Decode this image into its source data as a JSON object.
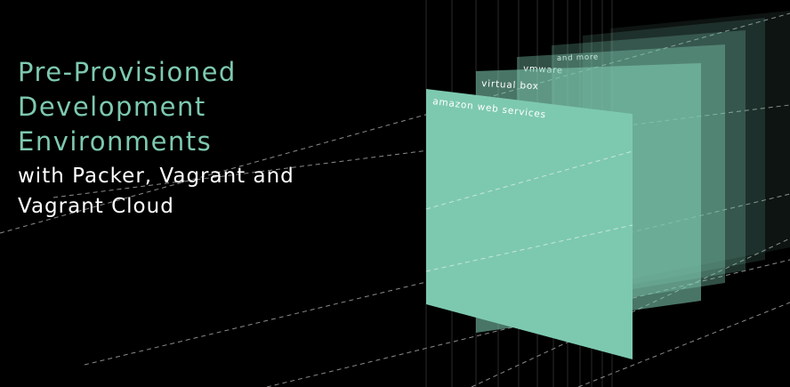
{
  "title_lines": [
    "Pre-Provisioned",
    "Development",
    "Environments"
  ],
  "subtitle_lines": [
    "with Packer, Vagrant and",
    "Vagrant Cloud"
  ],
  "panels": [
    {
      "label": "amazon web services"
    },
    {
      "label": "virtual box"
    },
    {
      "label": "vmware"
    },
    {
      "label": "and more"
    },
    {
      "label": ""
    },
    {
      "label": ""
    }
  ],
  "colors": {
    "background": "#000000",
    "accent": "#7dc9b0",
    "subtitle": "#ffffff",
    "guide_lines": "#8a8a8a"
  }
}
